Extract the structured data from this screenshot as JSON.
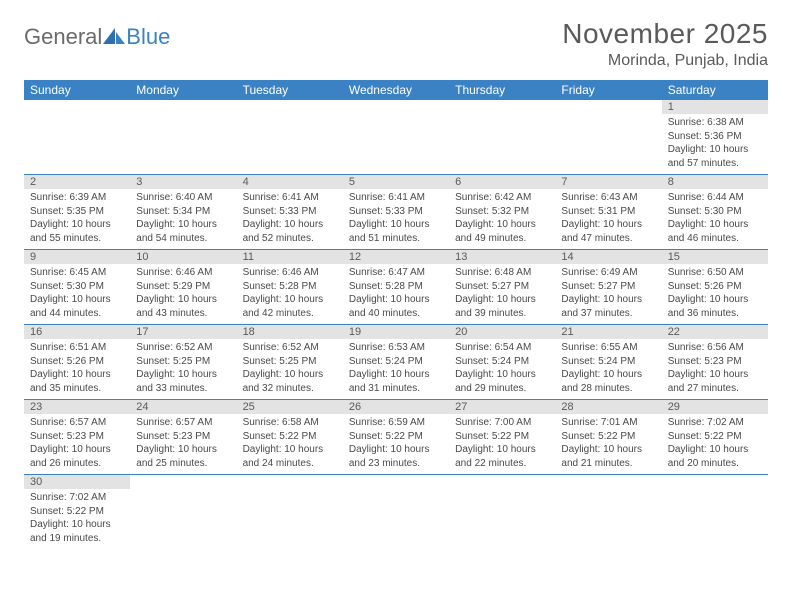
{
  "logo": {
    "text1": "General",
    "text2": "Blue"
  },
  "title": {
    "month": "November 2025",
    "location": "Morinda, Punjab, India"
  },
  "colors": {
    "header_bg": "#3b82c4",
    "header_fg": "#ffffff",
    "daynum_bg": "#e3e3e3",
    "text": "#5a5a5a",
    "body_text": "#4a4a4a",
    "rule": "#3b82c4"
  },
  "fonts": {
    "month_size": 28,
    "location_size": 16,
    "weekday_size": 12,
    "daynum_size": 11,
    "body_size": 10
  },
  "weekdays": [
    "Sunday",
    "Monday",
    "Tuesday",
    "Wednesday",
    "Thursday",
    "Friday",
    "Saturday"
  ],
  "weeks": [
    [
      null,
      null,
      null,
      null,
      null,
      null,
      {
        "n": "1",
        "sr": "Sunrise: 6:38 AM",
        "ss": "Sunset: 5:36 PM",
        "dl": "Daylight: 10 hours and 57 minutes."
      }
    ],
    [
      {
        "n": "2",
        "sr": "Sunrise: 6:39 AM",
        "ss": "Sunset: 5:35 PM",
        "dl": "Daylight: 10 hours and 55 minutes."
      },
      {
        "n": "3",
        "sr": "Sunrise: 6:40 AM",
        "ss": "Sunset: 5:34 PM",
        "dl": "Daylight: 10 hours and 54 minutes."
      },
      {
        "n": "4",
        "sr": "Sunrise: 6:41 AM",
        "ss": "Sunset: 5:33 PM",
        "dl": "Daylight: 10 hours and 52 minutes."
      },
      {
        "n": "5",
        "sr": "Sunrise: 6:41 AM",
        "ss": "Sunset: 5:33 PM",
        "dl": "Daylight: 10 hours and 51 minutes."
      },
      {
        "n": "6",
        "sr": "Sunrise: 6:42 AM",
        "ss": "Sunset: 5:32 PM",
        "dl": "Daylight: 10 hours and 49 minutes."
      },
      {
        "n": "7",
        "sr": "Sunrise: 6:43 AM",
        "ss": "Sunset: 5:31 PM",
        "dl": "Daylight: 10 hours and 47 minutes."
      },
      {
        "n": "8",
        "sr": "Sunrise: 6:44 AM",
        "ss": "Sunset: 5:30 PM",
        "dl": "Daylight: 10 hours and 46 minutes."
      }
    ],
    [
      {
        "n": "9",
        "sr": "Sunrise: 6:45 AM",
        "ss": "Sunset: 5:30 PM",
        "dl": "Daylight: 10 hours and 44 minutes."
      },
      {
        "n": "10",
        "sr": "Sunrise: 6:46 AM",
        "ss": "Sunset: 5:29 PM",
        "dl": "Daylight: 10 hours and 43 minutes."
      },
      {
        "n": "11",
        "sr": "Sunrise: 6:46 AM",
        "ss": "Sunset: 5:28 PM",
        "dl": "Daylight: 10 hours and 42 minutes."
      },
      {
        "n": "12",
        "sr": "Sunrise: 6:47 AM",
        "ss": "Sunset: 5:28 PM",
        "dl": "Daylight: 10 hours and 40 minutes."
      },
      {
        "n": "13",
        "sr": "Sunrise: 6:48 AM",
        "ss": "Sunset: 5:27 PM",
        "dl": "Daylight: 10 hours and 39 minutes."
      },
      {
        "n": "14",
        "sr": "Sunrise: 6:49 AM",
        "ss": "Sunset: 5:27 PM",
        "dl": "Daylight: 10 hours and 37 minutes."
      },
      {
        "n": "15",
        "sr": "Sunrise: 6:50 AM",
        "ss": "Sunset: 5:26 PM",
        "dl": "Daylight: 10 hours and 36 minutes."
      }
    ],
    [
      {
        "n": "16",
        "sr": "Sunrise: 6:51 AM",
        "ss": "Sunset: 5:26 PM",
        "dl": "Daylight: 10 hours and 35 minutes."
      },
      {
        "n": "17",
        "sr": "Sunrise: 6:52 AM",
        "ss": "Sunset: 5:25 PM",
        "dl": "Daylight: 10 hours and 33 minutes."
      },
      {
        "n": "18",
        "sr": "Sunrise: 6:52 AM",
        "ss": "Sunset: 5:25 PM",
        "dl": "Daylight: 10 hours and 32 minutes."
      },
      {
        "n": "19",
        "sr": "Sunrise: 6:53 AM",
        "ss": "Sunset: 5:24 PM",
        "dl": "Daylight: 10 hours and 31 minutes."
      },
      {
        "n": "20",
        "sr": "Sunrise: 6:54 AM",
        "ss": "Sunset: 5:24 PM",
        "dl": "Daylight: 10 hours and 29 minutes."
      },
      {
        "n": "21",
        "sr": "Sunrise: 6:55 AM",
        "ss": "Sunset: 5:24 PM",
        "dl": "Daylight: 10 hours and 28 minutes."
      },
      {
        "n": "22",
        "sr": "Sunrise: 6:56 AM",
        "ss": "Sunset: 5:23 PM",
        "dl": "Daylight: 10 hours and 27 minutes."
      }
    ],
    [
      {
        "n": "23",
        "sr": "Sunrise: 6:57 AM",
        "ss": "Sunset: 5:23 PM",
        "dl": "Daylight: 10 hours and 26 minutes."
      },
      {
        "n": "24",
        "sr": "Sunrise: 6:57 AM",
        "ss": "Sunset: 5:23 PM",
        "dl": "Daylight: 10 hours and 25 minutes."
      },
      {
        "n": "25",
        "sr": "Sunrise: 6:58 AM",
        "ss": "Sunset: 5:22 PM",
        "dl": "Daylight: 10 hours and 24 minutes."
      },
      {
        "n": "26",
        "sr": "Sunrise: 6:59 AM",
        "ss": "Sunset: 5:22 PM",
        "dl": "Daylight: 10 hours and 23 minutes."
      },
      {
        "n": "27",
        "sr": "Sunrise: 7:00 AM",
        "ss": "Sunset: 5:22 PM",
        "dl": "Daylight: 10 hours and 22 minutes."
      },
      {
        "n": "28",
        "sr": "Sunrise: 7:01 AM",
        "ss": "Sunset: 5:22 PM",
        "dl": "Daylight: 10 hours and 21 minutes."
      },
      {
        "n": "29",
        "sr": "Sunrise: 7:02 AM",
        "ss": "Sunset: 5:22 PM",
        "dl": "Daylight: 10 hours and 20 minutes."
      }
    ],
    [
      {
        "n": "30",
        "sr": "Sunrise: 7:02 AM",
        "ss": "Sunset: 5:22 PM",
        "dl": "Daylight: 10 hours and 19 minutes."
      },
      null,
      null,
      null,
      null,
      null,
      null
    ]
  ]
}
